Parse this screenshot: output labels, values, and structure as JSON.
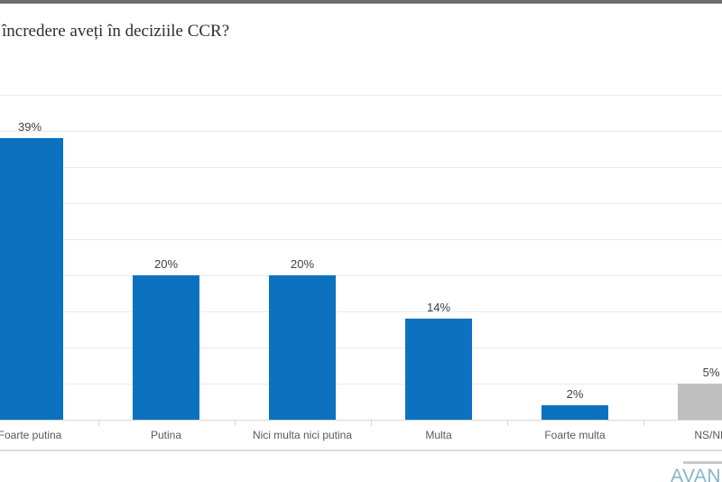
{
  "header": {
    "top_strip_color": "#6e6e6e",
    "title": "încredere aveți în deciziile CCR?"
  },
  "chart_data": {
    "type": "bar",
    "title": "încredere aveți în deciziile CCR?",
    "categories": [
      "Foarte putina",
      "Putina",
      "Nici multa nici putina",
      "Multa",
      "Foarte multa",
      "NS/NR"
    ],
    "values": [
      39,
      20,
      20,
      14,
      2,
      5
    ],
    "value_labels": [
      "39%",
      "20%",
      "20%",
      "14%",
      "2%",
      "5%"
    ],
    "bar_colors": [
      "#0c72c0",
      "#0c72c0",
      "#0c72c0",
      "#0c72c0",
      "#0c72c0",
      "#bfbfbf"
    ],
    "xlabel": "",
    "ylabel": "",
    "ylim": [
      0,
      45
    ],
    "gridline_step_pct": 5,
    "grid": true,
    "legend": false,
    "axis_color": "#d6d6d6",
    "gridline_color": "#eaeaea",
    "value_label_color": "#404040",
    "category_label_color": "#595959"
  },
  "footer": {
    "logo_text": "AVAN",
    "logo_color": "#85b5ce"
  }
}
